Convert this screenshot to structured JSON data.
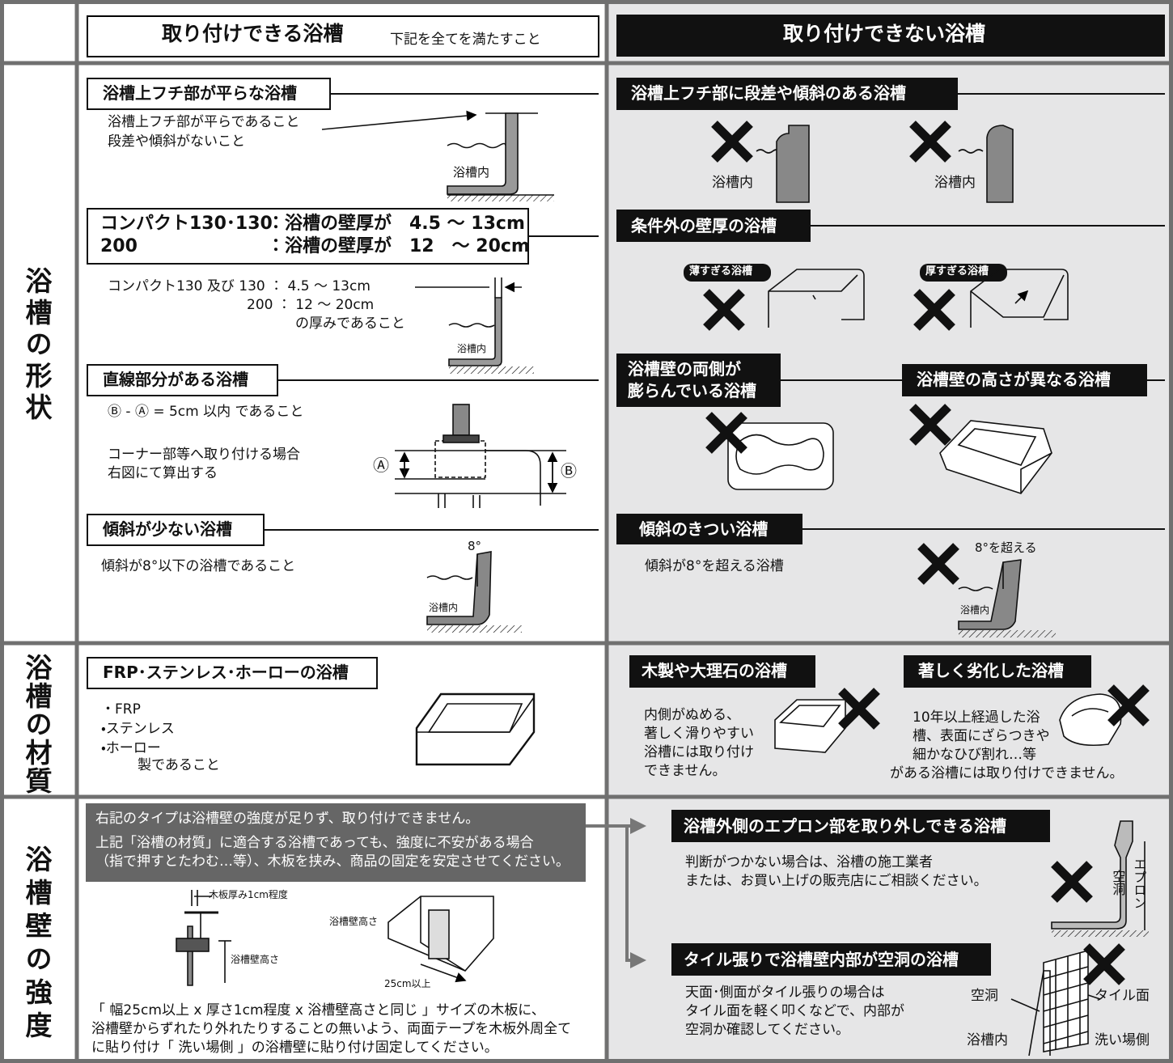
{
  "header": {
    "ok_title": "取り付けできる浴槽",
    "ok_note": "下記を全てを満たすこと",
    "ng_title": "取り付けできない浴槽"
  },
  "row_labels": [
    "浴槽の形状",
    "浴槽の材質",
    "浴槽壁の強度"
  ],
  "shape_ok": {
    "flat": {
      "heading": "浴槽上フチ部が平らな浴槽",
      "lines": [
        "浴槽上フチ部が平らであること",
        "段差や傾斜がないこと"
      ],
      "diagram_label": "浴槽内"
    },
    "thickness": {
      "spec": [
        {
          "model": "コンパクト130･130",
          "text": "：浴槽の壁厚が　4.5 ～ 13cm"
        },
        {
          "model": "200",
          "text": "：浴槽の壁厚が　12　～ 20cm"
        }
      ],
      "lines": [
        "コンパクト130 及び 130 ：  4.5 ～ 13cm",
        "200 ：  12 ～ 20cm",
        "の厚みであること"
      ],
      "diagram_label": "浴槽内"
    },
    "straight": {
      "heading": "直線部分がある浴槽",
      "rule": "Ⓑ - Ⓐ = 5cm 以内 であること",
      "lines": [
        "コーナー部等へ取り付ける場合",
        "右図にて算出する"
      ],
      "mark_a": "Ⓐ",
      "mark_b": "Ⓑ"
    },
    "slope": {
      "heading": "傾斜が少ない浴槽",
      "text": "傾斜が8°以下の浴槽であること",
      "angle": "8°",
      "diagram_label": "浴槽内"
    }
  },
  "shape_ng": {
    "step": {
      "heading": "浴槽上フチ部に段差や傾斜のある浴槽",
      "diagram_labels": [
        "浴槽内",
        "浴槽内"
      ]
    },
    "thickness": {
      "heading": "条件外の壁厚の浴槽",
      "thin": "薄すぎる浴槽",
      "thick": "厚すぎる浴槽"
    },
    "bulge": {
      "heading": [
        "浴槽壁の両側が",
        "膨らんでいる浴槽"
      ]
    },
    "height": {
      "heading": "浴槽壁の高さが異なる浴槽"
    },
    "slope": {
      "heading": "傾斜のきつい浴槽",
      "text": "傾斜が8°を超える浴槽",
      "angle": "8°を超える",
      "diagram_label": "浴槽内"
    }
  },
  "material_ok": {
    "heading": "FRP･ステンレス･ホーローの浴槽",
    "items": [
      "・FRP",
      "・ステンレス",
      "・ホーロー"
    ],
    "note": "製であること"
  },
  "material_ng": {
    "wood": {
      "heading": "木製や大理石の浴槽",
      "lines": [
        "内側がぬめる、",
        "著しく滑りやすい",
        "浴槽には取り付け",
        "できません。"
      ]
    },
    "aged": {
      "heading": "著しく劣化した浴槽",
      "lines": [
        "10年以上経過した浴",
        "槽、表面にざらつきや",
        "細かなひび割れ…等",
        "がある浴槽には取り付けできません。"
      ]
    }
  },
  "strength_ok": {
    "notice": [
      "右記のタイプは浴槽壁の強度が足りず、取り付けできません。",
      "上記「浴槽の材質」に適合する浴槽であっても、強度に不安がある場合",
      "（指で押すとたわむ…等）、木板を挟み、商品の固定を安定させてください。"
    ],
    "labels": {
      "board": "木板厚み1cm程度",
      "height_left": "浴槽壁高さ",
      "height_right": "浴槽壁高さ",
      "width": "25cm以上"
    },
    "instructions": [
      "「 幅25cm以上 x 厚さ1cm程度 x 浴槽壁高さと同じ 」サイズの木板に、",
      "浴槽壁からずれたり外れたりすることの無いよう、両面テープを木板外周全て",
      "に貼り付け「 洗い場側 」の浴槽壁に貼り付け固定してください。"
    ]
  },
  "strength_ng": {
    "apron": {
      "heading": "浴槽外側のエプロン部を取り外しできる浴槽",
      "lines": [
        "判断がつかない場合は、浴槽の施工業者",
        "または、お買い上げの販売店にご相談ください。"
      ],
      "hollow": "空洞",
      "apron": "エプロン"
    },
    "tile": {
      "heading": "タイル張りで浴槽壁内部が空洞の浴槽",
      "lines": [
        "天面･側面がタイル張りの場合は",
        "タイル面を軽く叩くなどで、内部が",
        "空洞か確認してください。"
      ],
      "hollow": "空洞",
      "tile_face": "タイル面",
      "inside": "浴槽内",
      "wash_side": "洗い場側"
    }
  }
}
